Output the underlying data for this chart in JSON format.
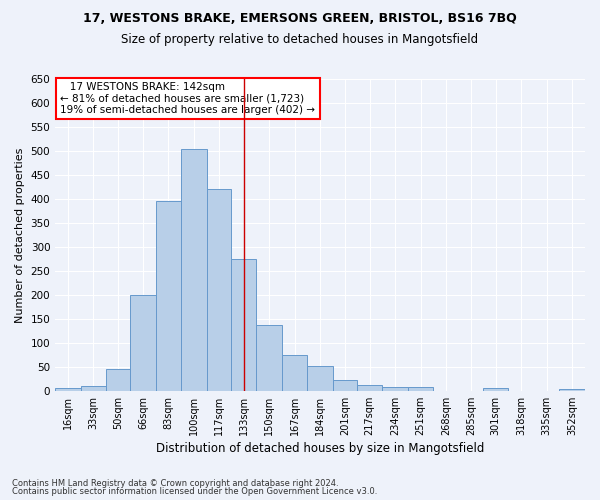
{
  "title_line1": "17, WESTONS BRAKE, EMERSONS GREEN, BRISTOL, BS16 7BQ",
  "title_line2": "Size of property relative to detached houses in Mangotsfield",
  "xlabel": "Distribution of detached houses by size in Mangotsfield",
  "ylabel": "Number of detached properties",
  "footnote1": "Contains HM Land Registry data © Crown copyright and database right 2024.",
  "footnote2": "Contains public sector information licensed under the Open Government Licence v3.0.",
  "annotation_line1": "   17 WESTONS BRAKE: 142sqm   ",
  "annotation_line2": "← 81% of detached houses are smaller (1,723)",
  "annotation_line3": "19% of semi-detached houses are larger (402) →",
  "bar_color": "#b8cfe8",
  "bar_edge_color": "#6699cc",
  "background_color": "#eef2fa",
  "grid_color": "#ffffff",
  "vline_x": 142,
  "vline_color": "#cc0000",
  "categories": [
    "16sqm",
    "33sqm",
    "50sqm",
    "66sqm",
    "83sqm",
    "100sqm",
    "117sqm",
    "133sqm",
    "150sqm",
    "167sqm",
    "184sqm",
    "201sqm",
    "217sqm",
    "234sqm",
    "251sqm",
    "268sqm",
    "285sqm",
    "301sqm",
    "318sqm",
    "335sqm",
    "352sqm"
  ],
  "bin_edges": [
    16,
    33,
    50,
    66,
    83,
    100,
    117,
    133,
    150,
    167,
    184,
    201,
    217,
    234,
    251,
    268,
    285,
    301,
    318,
    335,
    352,
    369
  ],
  "values": [
    5,
    10,
    45,
    200,
    395,
    505,
    420,
    275,
    138,
    75,
    52,
    22,
    13,
    9,
    8,
    0,
    0,
    6,
    0,
    0,
    3
  ],
  "ylim": [
    0,
    650
  ],
  "yticks": [
    0,
    50,
    100,
    150,
    200,
    250,
    300,
    350,
    400,
    450,
    500,
    550,
    600,
    650
  ]
}
